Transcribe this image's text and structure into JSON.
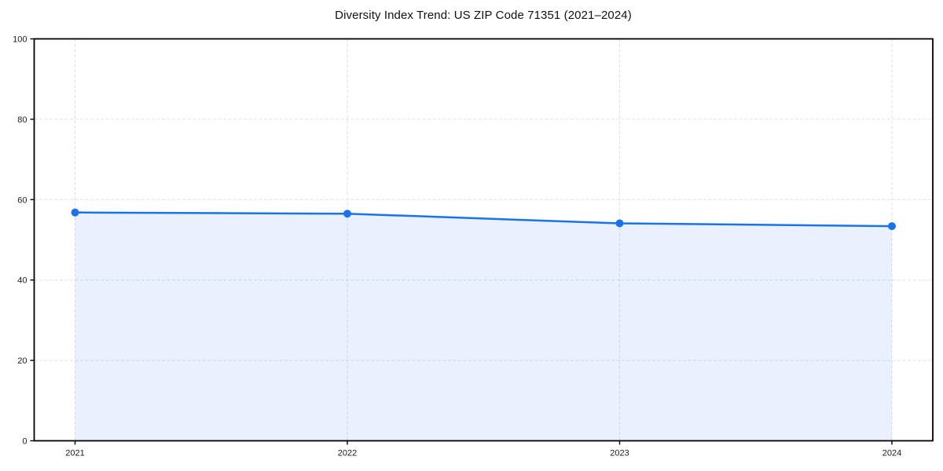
{
  "chart_data": {
    "type": "area",
    "title": "Diversity Index Trend: US ZIP Code 71351 (2021–2024)",
    "categories": [
      "2021",
      "2022",
      "2023",
      "2024"
    ],
    "series": [
      {
        "name": "Diversity Index",
        "values": [
          56.8,
          56.5,
          54.1,
          53.4
        ]
      }
    ],
    "xlabel": "",
    "ylabel": "",
    "ylim": [
      0,
      100
    ],
    "yticks": [
      0,
      20,
      40,
      60,
      80,
      100
    ],
    "grid": true,
    "grid_style": "dashed",
    "legend_visible": false,
    "marker": "circle",
    "colors": {
      "line": "#1a73e8",
      "marker": "#1a73e8",
      "fill": "#1a73e8",
      "fill_opacity": 0.1,
      "grid": "#e0e0e0",
      "axis": "#000000",
      "tick_text": "#1a1a1a",
      "background": "#ffffff"
    }
  }
}
